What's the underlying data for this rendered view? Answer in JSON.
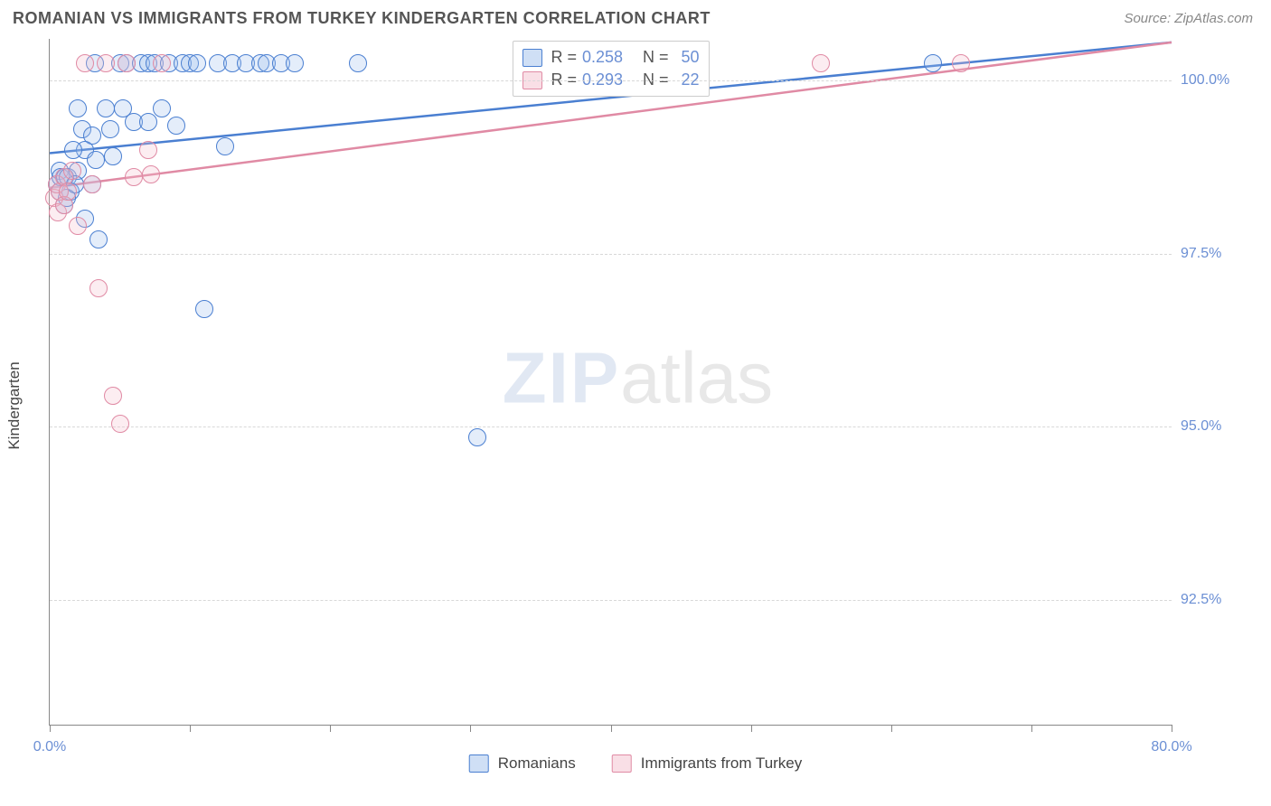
{
  "header": {
    "title": "ROMANIAN VS IMMIGRANTS FROM TURKEY KINDERGARTEN CORRELATION CHART",
    "source": "Source: ZipAtlas.com"
  },
  "chart": {
    "type": "scatter",
    "ylabel": "Kindergarten",
    "background_color": "#ffffff",
    "grid_color": "#d8d8d8",
    "axis_color": "#888888",
    "tick_label_color": "#6b8fd4",
    "xlim": [
      0,
      80
    ],
    "ylim": [
      90.7,
      100.6
    ],
    "xticks": [
      0,
      10,
      20,
      30,
      40,
      50,
      60,
      70,
      80
    ],
    "xtick_labels": {
      "0": "0.0%",
      "80": "80.0%"
    },
    "yticks": [
      92.5,
      95.0,
      97.5,
      100.0
    ],
    "ytick_labels": [
      "92.5%",
      "95.0%",
      "97.5%",
      "100.0%"
    ],
    "marker_radius": 10,
    "marker_stroke_width": 1.5,
    "marker_fill_opacity": 0.28,
    "trend_width": 2.5,
    "series": [
      {
        "name": "Romanians",
        "color_stroke": "#4a7fd1",
        "color_fill": "#9fc0ec",
        "R": "0.258",
        "N": "50",
        "trend": {
          "x1": 0,
          "y1": 98.95,
          "x2": 80,
          "y2": 100.55
        },
        "points": [
          {
            "x": 0.5,
            "y": 98.5
          },
          {
            "x": 0.7,
            "y": 98.7
          },
          {
            "x": 1.0,
            "y": 98.2
          },
          {
            "x": 0.8,
            "y": 98.6
          },
          {
            "x": 1.1,
            "y": 98.6
          },
          {
            "x": 1.3,
            "y": 98.6
          },
          {
            "x": 1.5,
            "y": 98.4
          },
          {
            "x": 2.0,
            "y": 98.7
          },
          {
            "x": 2.0,
            "y": 99.6
          },
          {
            "x": 2.3,
            "y": 99.3
          },
          {
            "x": 2.5,
            "y": 98.0
          },
          {
            "x": 3.0,
            "y": 99.2
          },
          {
            "x": 3.2,
            "y": 100.25
          },
          {
            "x": 3.5,
            "y": 97.7
          },
          {
            "x": 4.0,
            "y": 99.6
          },
          {
            "x": 4.3,
            "y": 99.3
          },
          {
            "x": 4.5,
            "y": 98.9
          },
          {
            "x": 5.0,
            "y": 100.25
          },
          {
            "x": 5.2,
            "y": 99.6
          },
          {
            "x": 5.5,
            "y": 100.25
          },
          {
            "x": 6.0,
            "y": 99.4
          },
          {
            "x": 6.5,
            "y": 100.25
          },
          {
            "x": 7.0,
            "y": 100.25
          },
          {
            "x": 7.0,
            "y": 99.4
          },
          {
            "x": 7.5,
            "y": 100.25
          },
          {
            "x": 8.0,
            "y": 99.6
          },
          {
            "x": 8.5,
            "y": 100.25
          },
          {
            "x": 9.0,
            "y": 99.35
          },
          {
            "x": 9.5,
            "y": 100.25
          },
          {
            "x": 10.0,
            "y": 100.25
          },
          {
            "x": 10.5,
            "y": 100.25
          },
          {
            "x": 11.0,
            "y": 96.7
          },
          {
            "x": 12.0,
            "y": 100.25
          },
          {
            "x": 12.5,
            "y": 99.05
          },
          {
            "x": 13.0,
            "y": 100.25
          },
          {
            "x": 14.0,
            "y": 100.25
          },
          {
            "x": 15.0,
            "y": 100.25
          },
          {
            "x": 15.5,
            "y": 100.25
          },
          {
            "x": 16.5,
            "y": 100.25
          },
          {
            "x": 17.5,
            "y": 100.25
          },
          {
            "x": 22.0,
            "y": 100.25
          },
          {
            "x": 30.5,
            "y": 94.85
          },
          {
            "x": 63.0,
            "y": 100.25
          },
          {
            "x": 1.2,
            "y": 98.3
          },
          {
            "x": 1.8,
            "y": 98.5
          },
          {
            "x": 2.5,
            "y": 99.0
          },
          {
            "x": 3.3,
            "y": 98.85
          },
          {
            "x": 3.0,
            "y": 98.5
          },
          {
            "x": 1.7,
            "y": 99.0
          },
          {
            "x": 0.7,
            "y": 98.4
          }
        ]
      },
      {
        "name": "Immigrants from Turkey",
        "color_stroke": "#e08aa4",
        "color_fill": "#f4c0ce",
        "R": "0.293",
        "N": "22",
        "trend": {
          "x1": 0,
          "y1": 98.45,
          "x2": 80,
          "y2": 100.55
        },
        "points": [
          {
            "x": 0.3,
            "y": 98.3
          },
          {
            "x": 0.5,
            "y": 98.5
          },
          {
            "x": 0.7,
            "y": 98.4
          },
          {
            "x": 0.6,
            "y": 98.1
          },
          {
            "x": 1.0,
            "y": 98.6
          },
          {
            "x": 1.0,
            "y": 98.2
          },
          {
            "x": 1.3,
            "y": 98.4
          },
          {
            "x": 1.6,
            "y": 98.7
          },
          {
            "x": 2.0,
            "y": 97.9
          },
          {
            "x": 2.5,
            "y": 100.25
          },
          {
            "x": 3.0,
            "y": 98.5
          },
          {
            "x": 3.5,
            "y": 97.0
          },
          {
            "x": 4.0,
            "y": 100.25
          },
          {
            "x": 4.5,
            "y": 95.45
          },
          {
            "x": 5.0,
            "y": 95.05
          },
          {
            "x": 5.5,
            "y": 100.25
          },
          {
            "x": 6.0,
            "y": 98.6
          },
          {
            "x": 7.0,
            "y": 99.0
          },
          {
            "x": 7.2,
            "y": 98.65
          },
          {
            "x": 8.0,
            "y": 100.25
          },
          {
            "x": 55.0,
            "y": 100.25
          },
          {
            "x": 65.0,
            "y": 100.25
          }
        ]
      }
    ],
    "stats_labels": {
      "R": "R =",
      "N": "N ="
    },
    "legend": [
      {
        "label": "Romanians",
        "stroke": "#4a7fd1",
        "fill": "#9fc0ec"
      },
      {
        "label": "Immigrants from Turkey",
        "stroke": "#e08aa4",
        "fill": "#f4c0ce"
      }
    ],
    "watermark": {
      "part1": "ZIP",
      "part2": "atlas"
    }
  }
}
